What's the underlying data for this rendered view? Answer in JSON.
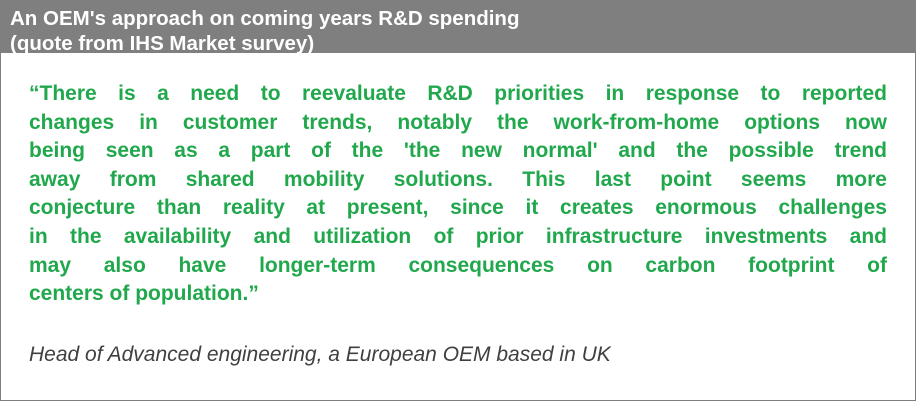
{
  "header": {
    "line1": "An OEM's approach on coming years R&D spending",
    "line2": "(quote from IHS Market survey)"
  },
  "quote": {
    "lines": [
      "“There is a need to reevaluate R&D priorities in response to reported",
      "changes in customer trends, notably the work-from-home options now",
      "being seen as a part of the 'the new normal' and the possible trend",
      "away from shared mobility solutions. This last point seems more",
      "conjecture than reality at present, since it creates enormous challenges",
      "in the availability and utilization of prior infrastructure investments and",
      "may also have longer-term consequences on carbon footprint of",
      "centers of population.”"
    ]
  },
  "attribution": "Head of Advanced engineering, a European OEM based in UK",
  "colors": {
    "header_bg": "#7f7f7f",
    "header_text": "#ffffff",
    "quote_text": "#21a84d",
    "attribution_text": "#404040"
  }
}
